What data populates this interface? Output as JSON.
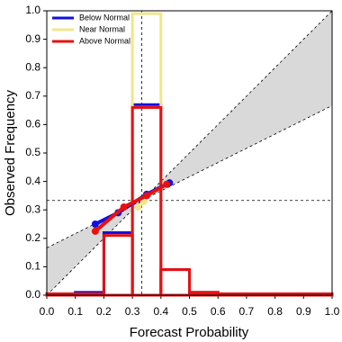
{
  "chart_data": {
    "type": "reliability",
    "xlabel": "Forecast Probability",
    "ylabel": "Observed Frequency",
    "xlim": [
      0,
      1
    ],
    "ylim": [
      0,
      1
    ],
    "xticks": [
      {
        "value": 0,
        "label": "0.0"
      },
      0.1,
      0.2,
      0.3,
      0.4,
      0.5,
      0.6,
      0.7,
      0.8,
      0.9,
      {
        "value": 1,
        "label": "1.0"
      }
    ],
    "yticks": [
      {
        "value": 0,
        "label": "0.0"
      },
      0.1,
      0.2,
      0.3,
      0.4,
      0.5,
      0.6,
      0.7,
      0.8,
      0.9,
      {
        "value": 1,
        "label": "1.0"
      }
    ],
    "climatology": 0.333,
    "bins": [
      0,
      0.1,
      0.2,
      0.3,
      0.4,
      0.5,
      0.6,
      0.7,
      0.8,
      0.9,
      1
    ],
    "legend": "upper left",
    "series": [
      {
        "name": "Below Normal",
        "color": "#1010e0",
        "x": [
          0.17,
          0.25,
          0.35,
          0.43
        ],
        "values": [
          0.25,
          0.29,
          0.355,
          0.395
        ],
        "hist": [
          0,
          0.01,
          0.22,
          0.67,
          0.09,
          0.01,
          0,
          0,
          0,
          0
        ]
      },
      {
        "name": "Near Normal",
        "color": "#f0e68c",
        "x": [
          0.32,
          0.34
        ],
        "values": [
          0.31,
          0.33
        ],
        "hist": [
          0,
          0,
          0,
          0.99,
          0,
          0,
          0,
          0,
          0,
          0
        ]
      },
      {
        "name": "Above Normal",
        "color": "#e81010",
        "x": [
          0.17,
          0.27,
          0.35,
          0.42
        ],
        "values": [
          0.225,
          0.31,
          0.35,
          0.39
        ],
        "hist": [
          0.005,
          0.005,
          0.21,
          0.66,
          0.09,
          0.01,
          0.005,
          0.005,
          0.005,
          0.005
        ]
      }
    ]
  }
}
